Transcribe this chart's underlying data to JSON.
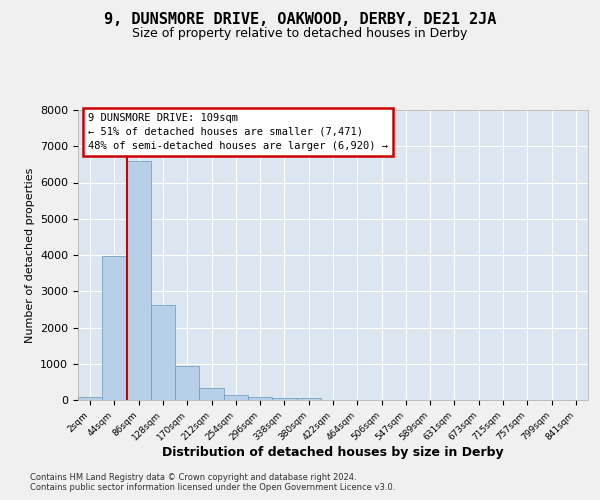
{
  "title": "9, DUNSMORE DRIVE, OAKWOOD, DERBY, DE21 2JA",
  "subtitle": "Size of property relative to detached houses in Derby",
  "xlabel": "Distribution of detached houses by size in Derby",
  "ylabel": "Number of detached properties",
  "bar_color": "#b8cfe8",
  "bar_edge_color": "#6699bb",
  "plot_bg_color": "#dce6f0",
  "fig_bg_color": "#f0f0f0",
  "grid_color": "#ffffff",
  "ylim": [
    0,
    8000
  ],
  "yticks": [
    0,
    1000,
    2000,
    3000,
    4000,
    5000,
    6000,
    7000,
    8000
  ],
  "bin_labels": [
    "2sqm",
    "44sqm",
    "86sqm",
    "128sqm",
    "170sqm",
    "212sqm",
    "254sqm",
    "296sqm",
    "338sqm",
    "380sqm",
    "422sqm",
    "464sqm",
    "506sqm",
    "547sqm",
    "589sqm",
    "631sqm",
    "673sqm",
    "715sqm",
    "757sqm",
    "799sqm",
    "841sqm"
  ],
  "bar_heights": [
    90,
    3980,
    6600,
    2620,
    950,
    330,
    130,
    90,
    65,
    55,
    0,
    0,
    0,
    0,
    0,
    0,
    0,
    0,
    0,
    0,
    0
  ],
  "vline_x": 1.5,
  "vline_color": "#cc0000",
  "annotation_line1": "9 DUNSMORE DRIVE: 109sqm",
  "annotation_line2": "← 51% of detached houses are smaller (7,471)",
  "annotation_line3": "48% of semi-detached houses are larger (6,920) →",
  "annotation_box_edge_color": "#cc0000",
  "footer1": "Contains HM Land Registry data © Crown copyright and database right 2024.",
  "footer2": "Contains public sector information licensed under the Open Government Licence v3.0."
}
